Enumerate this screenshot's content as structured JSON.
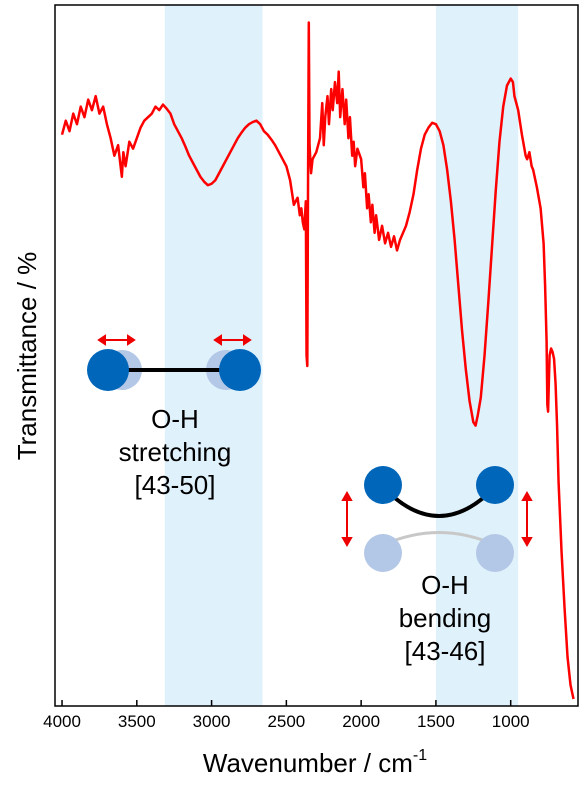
{
  "chart_data": {
    "type": "line",
    "ylabel": "Transmittance / %",
    "xlabel": {
      "text": "Wavenumber / cm",
      "superscript": "-1"
    },
    "xlim": [
      4047,
      550
    ],
    "ylim": [
      0,
      100
    ],
    "xticks": [
      4000,
      3500,
      3000,
      2500,
      2000,
      1500,
      1000
    ],
    "bands": [
      {
        "from": 3313,
        "to": 2660
      },
      {
        "from": 1500,
        "to": 950
      }
    ],
    "band_color": "#dff1fb",
    "annotations": [
      {
        "lines": [
          "O-H",
          "stretching",
          "[43-50]"
        ]
      },
      {
        "lines": [
          "O-H",
          "bending",
          "[43-46]"
        ]
      }
    ],
    "series": [
      {
        "color": "#ff0000",
        "x": [
          4000,
          3975,
          3950,
          3925,
          3900,
          3875,
          3850,
          3825,
          3800,
          3775,
          3750,
          3725,
          3700,
          3675,
          3650,
          3625,
          3600,
          3590,
          3575,
          3550,
          3525,
          3500,
          3475,
          3450,
          3425,
          3400,
          3375,
          3350,
          3325,
          3300,
          3275,
          3250,
          3225,
          3200,
          3175,
          3150,
          3125,
          3100,
          3075,
          3050,
          3025,
          3000,
          2975,
          2950,
          2925,
          2900,
          2875,
          2850,
          2825,
          2800,
          2775,
          2750,
          2725,
          2700,
          2675,
          2650,
          2625,
          2600,
          2575,
          2550,
          2525,
          2500,
          2475,
          2450,
          2425,
          2410,
          2400,
          2390,
          2380,
          2370,
          2365,
          2360,
          2355,
          2350,
          2345,
          2335,
          2325,
          2300,
          2275,
          2260,
          2250,
          2240,
          2225,
          2215,
          2200,
          2190,
          2175,
          2160,
          2150,
          2140,
          2125,
          2110,
          2100,
          2085,
          2075,
          2060,
          2050,
          2040,
          2025,
          2000,
          1985,
          1975,
          1960,
          1950,
          1935,
          1925,
          1910,
          1900,
          1880,
          1860,
          1840,
          1820,
          1800,
          1780,
          1760,
          1740,
          1720,
          1700,
          1675,
          1650,
          1625,
          1600,
          1575,
          1550,
          1525,
          1500,
          1475,
          1450,
          1425,
          1400,
          1375,
          1350,
          1325,
          1300,
          1275,
          1250,
          1235,
          1220,
          1200,
          1175,
          1150,
          1125,
          1100,
          1075,
          1050,
          1025,
          1000,
          985,
          975,
          950,
          925,
          900,
          890,
          875,
          860,
          850,
          825,
          800,
          780,
          770,
          760,
          755,
          750,
          740,
          730,
          720,
          710,
          700,
          690,
          680,
          660,
          640,
          620,
          600,
          580
        ],
        "values": [
          81.5,
          83.5,
          82.0,
          84.5,
          83.0,
          85.5,
          84.0,
          86.5,
          85.0,
          87.0,
          84.5,
          85.5,
          83.0,
          81.0,
          78.5,
          80.0,
          75.5,
          79.0,
          77.0,
          80.5,
          79.5,
          81.0,
          82.5,
          83.5,
          84.0,
          84.5,
          85.5,
          85.0,
          85.8,
          85.2,
          84.5,
          83.0,
          82.0,
          81.0,
          79.8,
          78.5,
          77.5,
          76.5,
          75.5,
          74.8,
          74.3,
          74.5,
          75.0,
          76.0,
          77.0,
          78.0,
          79.0,
          80.0,
          81.0,
          81.8,
          82.5,
          83.0,
          83.3,
          83.5,
          83.0,
          82.0,
          81.5,
          80.8,
          80.0,
          79.0,
          78.0,
          77.0,
          75.0,
          71.5,
          72.5,
          70.0,
          71.0,
          69.0,
          68.0,
          72.0,
          50.0,
          48.5,
          75.0,
          97.5,
          80.0,
          76.0,
          78.0,
          79.0,
          81.0,
          86.0,
          80.0,
          84.0,
          87.0,
          83.0,
          88.0,
          85.0,
          89.0,
          86.0,
          90.5,
          84.0,
          88.0,
          83.0,
          86.5,
          81.0,
          84.0,
          78.5,
          80.5,
          77.0,
          79.5,
          78.0,
          74.0,
          76.0,
          71.0,
          73.0,
          69.0,
          71.5,
          67.5,
          70.0,
          66.5,
          68.5,
          66.0,
          67.5,
          65.5,
          67.0,
          65.0,
          66.5,
          67.5,
          68.5,
          70.5,
          73.0,
          76.5,
          79.5,
          81.5,
          82.5,
          83.2,
          83.0,
          82.0,
          80.0,
          76.5,
          72.0,
          66.5,
          60.0,
          53.5,
          48.0,
          43.5,
          40.5,
          40.0,
          41.5,
          44.0,
          50.0,
          57.5,
          65.5,
          73.5,
          80.5,
          85.5,
          88.5,
          89.5,
          89.0,
          87.0,
          85.0,
          81.5,
          78.5,
          78.0,
          79.0,
          77.0,
          76.5,
          74.0,
          71.0,
          66.0,
          60.0,
          52.0,
          43.0,
          42.0,
          50.0,
          51.0,
          50.5,
          49.5,
          46.0,
          40.0,
          32.0,
          22.0,
          14.0,
          7.0,
          3.0,
          1.0
        ]
      }
    ]
  }
}
